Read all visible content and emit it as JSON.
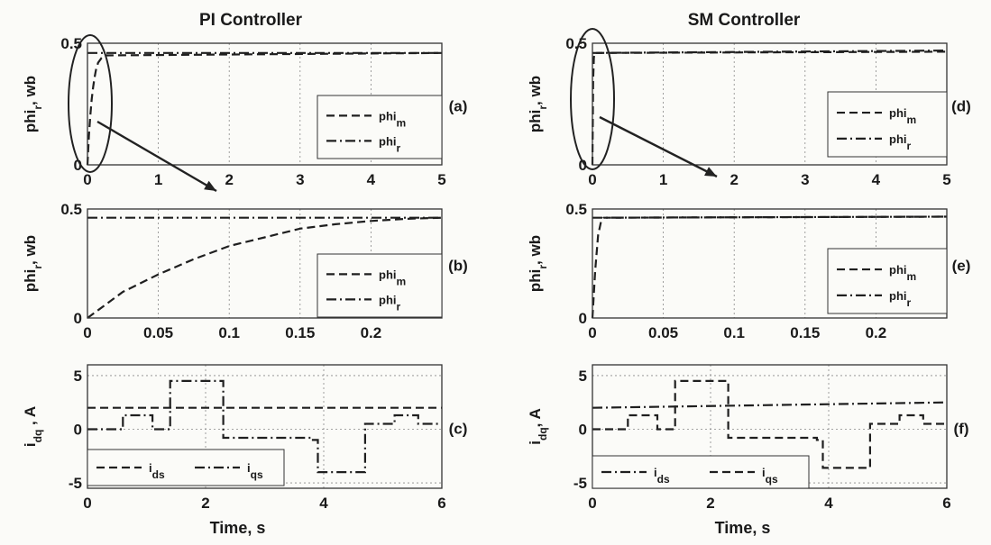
{
  "figure": {
    "col_titles": [
      "PI Controller",
      "SM Controller"
    ],
    "xlabel_bottom": "Time, s"
  },
  "colors": {
    "line": "#1f1f1f",
    "background": "#fbfbf8"
  },
  "chart_data": [
    {
      "id": "a",
      "tag": "(a)",
      "type": "line",
      "ylabel": "phi_r, wb",
      "xlim": [
        0,
        5
      ],
      "ylim": [
        0,
        0.5
      ],
      "xticks": [
        "0",
        "1",
        "2",
        "3",
        "4",
        "5"
      ],
      "yticks": [
        "0",
        "0.5"
      ],
      "grid": true,
      "legend_placement": "right",
      "series": [
        {
          "name": "phi_m",
          "style": "dashed",
          "x": [
            0,
            0.02,
            0.04,
            0.06,
            0.08,
            0.1,
            0.12,
            0.15,
            0.2,
            0.25,
            5
          ],
          "y": [
            0,
            0.12,
            0.2,
            0.27,
            0.32,
            0.36,
            0.39,
            0.42,
            0.44,
            0.45,
            0.46
          ]
        },
        {
          "name": "phi_r",
          "style": "dashdot",
          "x": [
            0,
            5
          ],
          "y": [
            0.46,
            0.46
          ]
        }
      ],
      "annotation": "ellipse near t=0 with arrow to panel (b)"
    },
    {
      "id": "b",
      "tag": "(b)",
      "type": "line",
      "ylabel": "phi_r, wb",
      "xlim": [
        0,
        0.25
      ],
      "ylim": [
        0,
        0.5
      ],
      "xticks": [
        "0",
        "0.05",
        "0.1",
        "0.15",
        "0.2"
      ],
      "yticks": [
        "0",
        "0.5"
      ],
      "grid": true,
      "legend_placement": "right",
      "series": [
        {
          "name": "phi_m",
          "style": "dashed",
          "x": [
            0,
            0.025,
            0.05,
            0.075,
            0.1,
            0.125,
            0.15,
            0.175,
            0.2,
            0.225,
            0.25
          ],
          "y": [
            0,
            0.12,
            0.2,
            0.27,
            0.33,
            0.37,
            0.41,
            0.43,
            0.445,
            0.455,
            0.46
          ]
        },
        {
          "name": "phi_r",
          "style": "dashdot",
          "x": [
            0,
            0.25
          ],
          "y": [
            0.46,
            0.46
          ]
        }
      ]
    },
    {
      "id": "c",
      "tag": "(c)",
      "type": "line",
      "ylabel": "i_dq , A",
      "xlabel": "Time, s",
      "xlim": [
        0,
        6
      ],
      "ylim": [
        -5.5,
        6
      ],
      "xticks": [
        "0",
        "2",
        "4",
        "6"
      ],
      "yticks": [
        "5",
        "0",
        "-5"
      ],
      "grid": true,
      "legend_placement": "bottom-left",
      "series": [
        {
          "name": "i_ds",
          "style": "dashed",
          "x": [
            0,
            2,
            6
          ],
          "y": [
            2,
            2,
            2
          ]
        },
        {
          "name": "i_qs",
          "style": "dashdot",
          "x": [
            0,
            0.6,
            0.6,
            1.1,
            1.1,
            1.4,
            1.4,
            2.3,
            2.3,
            3.8,
            3.8,
            3.9,
            3.9,
            4.7,
            4.7,
            5.2,
            5.2,
            5.6,
            5.6,
            6
          ],
          "y": [
            0,
            0,
            1.3,
            1.3,
            0,
            0,
            4.5,
            4.5,
            -0.8,
            -0.8,
            -1,
            -1,
            -4,
            -4,
            0.5,
            0.5,
            1.3,
            1.3,
            0.5,
            0.5
          ]
        }
      ]
    },
    {
      "id": "d",
      "tag": "(d)",
      "type": "line",
      "ylabel": "phi_r, wb",
      "xlim": [
        0,
        5
      ],
      "ylim": [
        0,
        0.5
      ],
      "xticks": [
        "0",
        "1",
        "2",
        "3",
        "4",
        "5"
      ],
      "yticks": [
        "0",
        "0.5"
      ],
      "grid": true,
      "legend_placement": "right",
      "series": [
        {
          "name": "phi_m",
          "style": "dashed",
          "x": [
            0,
            0.01,
            0.02,
            0.03,
            5
          ],
          "y": [
            0,
            0.35,
            0.44,
            0.46,
            0.465
          ]
        },
        {
          "name": "phi_r",
          "style": "dashdot",
          "x": [
            0,
            5
          ],
          "y": [
            0.46,
            0.47
          ]
        }
      ],
      "annotation": "ellipse near t=0 with arrow to panel (e)"
    },
    {
      "id": "e",
      "tag": "(e)",
      "type": "line",
      "ylabel": "phi_r, wb",
      "xlim": [
        0,
        0.25
      ],
      "ylim": [
        0,
        0.5
      ],
      "xticks": [
        "0",
        "0.05",
        "0.1",
        "0.15",
        "0.2"
      ],
      "yticks": [
        "0",
        "0.5"
      ],
      "grid": true,
      "legend_placement": "right",
      "series": [
        {
          "name": "phi_m",
          "style": "dashed",
          "x": [
            0,
            0.002,
            0.004,
            0.006,
            0.008,
            0.25
          ],
          "y": [
            0,
            0.22,
            0.38,
            0.44,
            0.46,
            0.465
          ]
        },
        {
          "name": "phi_r",
          "style": "dashdot",
          "x": [
            0,
            0.25
          ],
          "y": [
            0.46,
            0.465
          ]
        }
      ]
    },
    {
      "id": "f",
      "tag": "(f)",
      "type": "line",
      "ylabel": "i_dq, A",
      "xlabel": "Time, s",
      "xlim": [
        0,
        6
      ],
      "ylim": [
        -5.5,
        6
      ],
      "xticks": [
        "0",
        "2",
        "4",
        "6"
      ],
      "yticks": [
        "5",
        "0",
        "-5"
      ],
      "grid": true,
      "legend_placement": "bottom-left",
      "series": [
        {
          "name": "i_ds",
          "style": "dashdot",
          "x": [
            0,
            6
          ],
          "y": [
            2,
            2.5
          ]
        },
        {
          "name": "i_qs",
          "style": "dashed",
          "x": [
            0,
            0.6,
            0.6,
            1.1,
            1.1,
            1.4,
            1.4,
            2.3,
            2.3,
            3.8,
            3.8,
            3.9,
            3.9,
            4.7,
            4.7,
            5.2,
            5.2,
            5.6,
            5.6,
            6
          ],
          "y": [
            0,
            0,
            1.3,
            1.3,
            0,
            0,
            4.5,
            4.5,
            -0.8,
            -0.8,
            -1,
            -1,
            -3.6,
            -3.6,
            0.5,
            0.5,
            1.3,
            1.3,
            0.5,
            0.5
          ]
        }
      ]
    }
  ]
}
